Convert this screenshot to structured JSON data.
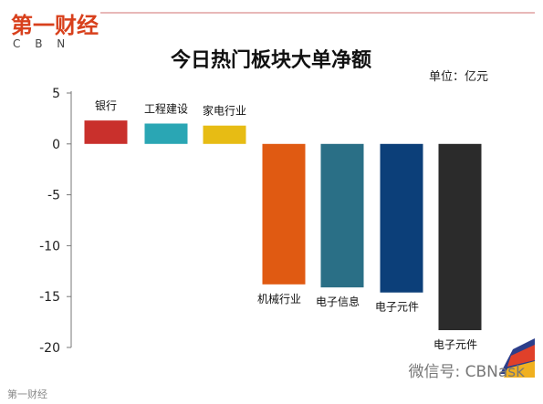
{
  "logo": {
    "text": "第一财经",
    "sub": "C B N"
  },
  "chart_data": {
    "type": "bar",
    "title": "今日热门板块大单净额",
    "unit": "单位：亿元",
    "categories": [
      "银行",
      "工程建设",
      "家电行业",
      "机械行业",
      "电子信息",
      "电子元件",
      "电子元件"
    ],
    "values": [
      2.3,
      2.0,
      1.8,
      -13.8,
      -14.1,
      -14.6,
      -18.3
    ],
    "colors": [
      "#c9302c",
      "#2aa6b4",
      "#e7bc14",
      "#e05a12",
      "#2a6f86",
      "#0c3f79",
      "#2b2b2b"
    ],
    "yticks": [
      5,
      0,
      -5,
      -10,
      -15,
      -20
    ],
    "ylim": [
      -20,
      5
    ],
    "grid": false
  },
  "watermark": {
    "left": "第一财经",
    "right": "微信号: CBNask"
  }
}
